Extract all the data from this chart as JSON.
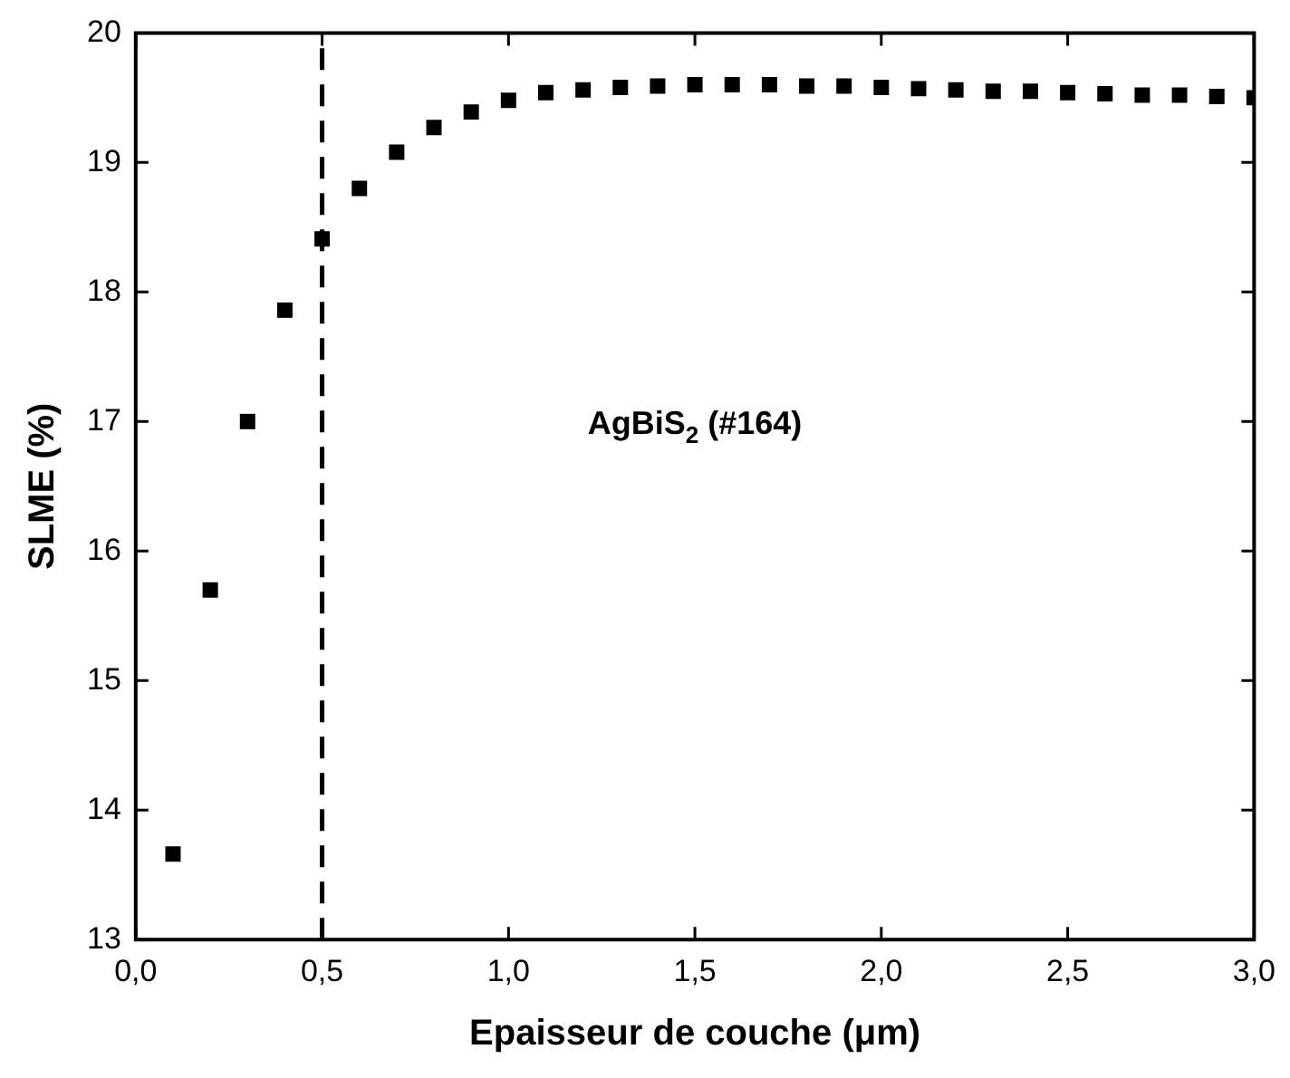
{
  "chart_data": {
    "type": "scatter",
    "xlabel": "Epaisseur de couche (μm)",
    "ylabel": "SLME (%)",
    "x": [
      0.1,
      0.2,
      0.3,
      0.4,
      0.5,
      0.6,
      0.7,
      0.8,
      0.9,
      1.0,
      1.1,
      1.2,
      1.3,
      1.4,
      1.5,
      1.6,
      1.7,
      1.8,
      1.9,
      2.0,
      2.1,
      2.2,
      2.3,
      2.4,
      2.5,
      2.6,
      2.7,
      2.8,
      2.9,
      3.0
    ],
    "series": [
      {
        "color": "#000000",
        "values": [
          13.66,
          15.7,
          17.0,
          17.86,
          18.41,
          18.8,
          19.08,
          19.27,
          19.39,
          19.48,
          19.54,
          19.56,
          19.58,
          19.59,
          19.6,
          19.6,
          19.6,
          19.59,
          19.59,
          19.58,
          19.57,
          19.56,
          19.55,
          19.55,
          19.54,
          19.53,
          19.52,
          19.52,
          19.51,
          19.5
        ]
      }
    ],
    "marker": "square",
    "legend": false,
    "grid": false,
    "xlim": [
      0,
      3
    ],
    "xticks": [
      {
        "value": 0,
        "label": "0,0"
      },
      {
        "value": 0.5,
        "label": "0,5"
      },
      {
        "value": 1,
        "label": "1,0"
      },
      {
        "value": 1.5,
        "label": "1,5"
      },
      {
        "value": 2,
        "label": "2,0"
      },
      {
        "value": 2.5,
        "label": "2,5"
      },
      {
        "value": 3,
        "label": "3,0"
      }
    ],
    "ylim": [
      13,
      20
    ],
    "yticks": [
      13,
      14,
      15,
      16,
      17,
      18,
      19,
      20
    ],
    "ref_lines": [
      {
        "axis": "x",
        "value": 0.5,
        "color": "#000000",
        "line_style": "dashed"
      }
    ],
    "annotations": [
      "AgBiS$_{2}$ (#164)"
    ]
  }
}
